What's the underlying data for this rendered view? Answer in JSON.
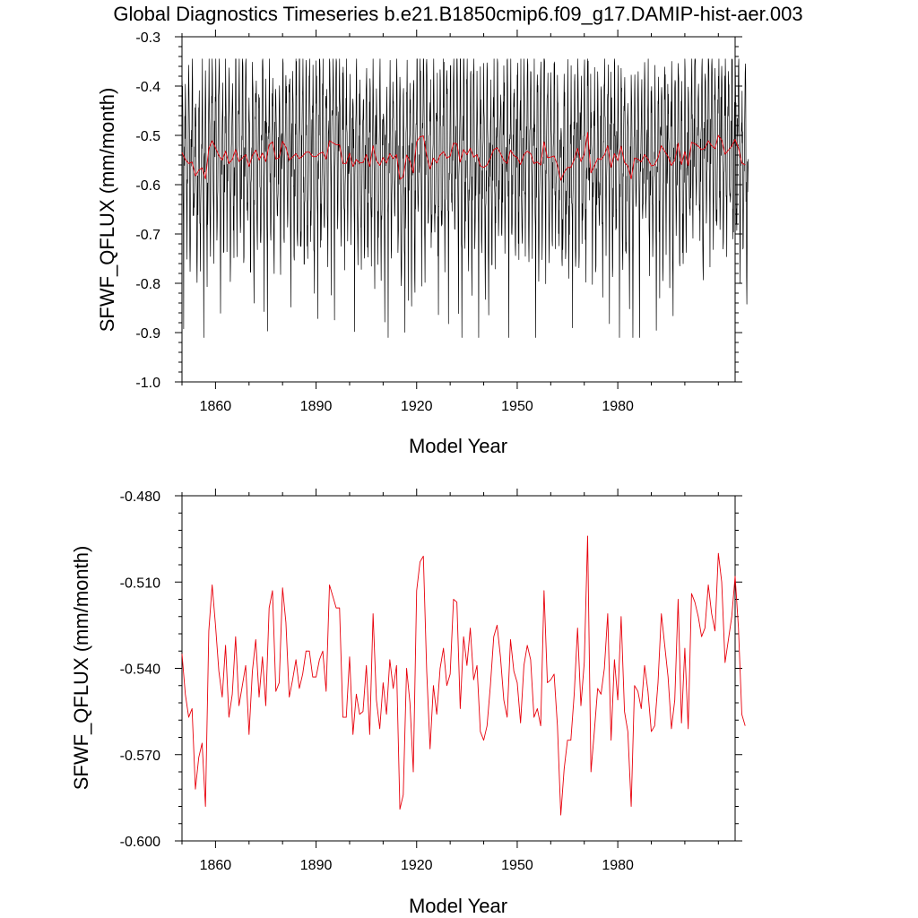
{
  "title": "Global Diagnostics Timeseries b.e21.B1850cmip6.f09_g17.DAMIP-hist-aer.003",
  "chart_data": [
    {
      "type": "line",
      "xlabel": "Model Year",
      "ylabel": "SFWF_QFLUX (mm/month)",
      "xlim": [
        1850,
        2015
      ],
      "ylim": [
        -1.0,
        -0.3
      ],
      "xticks": [
        1860,
        1890,
        1920,
        1950,
        1980
      ],
      "xtick_labels": [
        "1860",
        "1890",
        "1920",
        "1950",
        "1980"
      ],
      "yticks": [
        -1.0,
        -0.9,
        -0.8,
        -0.7,
        -0.6,
        -0.5,
        -0.4,
        -0.3
      ],
      "ytick_labels": [
        "-1.0",
        "-0.9",
        "-0.8",
        "-0.7",
        "-0.6",
        "-0.5",
        "-0.4",
        "-0.3"
      ],
      "grid": false,
      "series": [
        {
          "role": "monthly",
          "color": "#000000",
          "x_start": 1850,
          "x_step": 0.0833333,
          "values_per_year_approx": [
            -0.47,
            -0.45,
            -0.78,
            -0.8,
            -0.55,
            -0.52,
            -0.45,
            -0.61,
            -0.62,
            -0.42,
            -0.5
          ],
          "range_by_year": {
            "1850": [
              -0.79,
              -0.44
            ],
            "1851": [
              -0.91,
              -0.4
            ],
            "1853": [
              -0.85,
              -0.39
            ],
            "1858": [
              -0.87,
              -0.35
            ],
            "1870": [
              -0.86,
              -0.37
            ],
            "1890": [
              -0.76,
              -0.4
            ],
            "1913": [
              -0.89,
              -0.42
            ],
            "1950": [
              -0.83,
              -0.4
            ],
            "1980": [
              -0.85,
              -0.36
            ],
            "2014": [
              -0.82,
              -0.42
            ]
          }
        },
        {
          "role": "annual-mean",
          "color": "#e8000b",
          "x_start": 1850,
          "x_step": 1,
          "values": [
            -0.535,
            -0.549,
            -0.557,
            -0.554,
            -0.582,
            -0.571,
            -0.566,
            -0.588,
            -0.527,
            -0.511,
            -0.525,
            -0.541,
            -0.55,
            -0.532,
            -0.557,
            -0.549,
            -0.529,
            -0.553,
            -0.546,
            -0.539,
            -0.563,
            -0.541,
            -0.53,
            -0.55,
            -0.536,
            -0.553,
            -0.519,
            -0.513,
            -0.548,
            -0.545,
            -0.512,
            -0.524,
            -0.55,
            -0.544,
            -0.537,
            -0.547,
            -0.542,
            -0.534,
            -0.534,
            -0.543,
            -0.543,
            -0.537,
            -0.534,
            -0.548,
            -0.511,
            -0.515,
            -0.519,
            -0.519,
            -0.557,
            -0.557,
            -0.536,
            -0.563,
            -0.549,
            -0.556,
            -0.555,
            -0.539,
            -0.563,
            -0.521,
            -0.551,
            -0.561,
            -0.545,
            -0.556,
            -0.537,
            -0.547,
            -0.539,
            -0.589,
            -0.584,
            -0.54,
            -0.552,
            -0.576,
            -0.513,
            -0.503,
            -0.501,
            -0.541,
            -0.568,
            -0.546,
            -0.556,
            -0.54,
            -0.533,
            -0.546,
            -0.542,
            -0.516,
            -0.517,
            -0.554,
            -0.529,
            -0.539,
            -0.526,
            -0.544,
            -0.539,
            -0.562,
            -0.565,
            -0.56,
            -0.546,
            -0.529,
            -0.525,
            -0.536,
            -0.551,
            -0.557,
            -0.53,
            -0.541,
            -0.545,
            -0.559,
            -0.539,
            -0.532,
            -0.537,
            -0.557,
            -0.554,
            -0.56,
            -0.513,
            -0.545,
            -0.544,
            -0.542,
            -0.56,
            -0.591,
            -0.575,
            -0.565,
            -0.565,
            -0.549,
            -0.526,
            -0.553,
            -0.538,
            -0.494,
            -0.576,
            -0.562,
            -0.547,
            -0.549,
            -0.54,
            -0.521,
            -0.565,
            -0.537,
            -0.551,
            -0.522,
            -0.555,
            -0.562,
            -0.588,
            -0.546,
            -0.548,
            -0.554,
            -0.539,
            -0.548,
            -0.562,
            -0.56,
            -0.545,
            -0.521,
            -0.532,
            -0.543,
            -0.561,
            -0.551,
            -0.516,
            -0.559,
            -0.533,
            -0.561,
            -0.514,
            -0.517,
            -0.522,
            -0.529,
            -0.526,
            -0.511,
            -0.521,
            -0.527,
            -0.5,
            -0.51,
            -0.538,
            -0.53,
            -0.522,
            -0.508,
            -0.526,
            -0.556,
            -0.56
          ]
        }
      ]
    },
    {
      "type": "line",
      "xlabel": "Model Year",
      "ylabel": "SFWF_QFLUX (mm/month)",
      "xlim": [
        1850,
        2015
      ],
      "ylim": [
        -0.6,
        -0.48
      ],
      "xticks": [
        1860,
        1890,
        1920,
        1950,
        1980
      ],
      "xtick_labels": [
        "1860",
        "1890",
        "1920",
        "1950",
        "1980"
      ],
      "yticks": [
        -0.6,
        -0.57,
        -0.54,
        -0.51,
        -0.48
      ],
      "ytick_labels": [
        "-0.600",
        "-0.570",
        "-0.540",
        "-0.510",
        "-0.480"
      ],
      "grid": false,
      "series": [
        {
          "role": "annual-mean",
          "color": "#e8000b",
          "x_start": 1850,
          "x_step": 1,
          "values": [
            -0.535,
            -0.549,
            -0.557,
            -0.554,
            -0.582,
            -0.571,
            -0.566,
            -0.588,
            -0.527,
            -0.511,
            -0.525,
            -0.541,
            -0.55,
            -0.532,
            -0.557,
            -0.549,
            -0.529,
            -0.553,
            -0.546,
            -0.539,
            -0.563,
            -0.541,
            -0.53,
            -0.55,
            -0.536,
            -0.553,
            -0.519,
            -0.513,
            -0.548,
            -0.545,
            -0.512,
            -0.524,
            -0.55,
            -0.544,
            -0.537,
            -0.547,
            -0.542,
            -0.534,
            -0.534,
            -0.543,
            -0.543,
            -0.537,
            -0.534,
            -0.548,
            -0.511,
            -0.515,
            -0.519,
            -0.519,
            -0.557,
            -0.557,
            -0.536,
            -0.563,
            -0.549,
            -0.556,
            -0.555,
            -0.539,
            -0.563,
            -0.521,
            -0.551,
            -0.561,
            -0.545,
            -0.556,
            -0.537,
            -0.547,
            -0.539,
            -0.589,
            -0.584,
            -0.54,
            -0.552,
            -0.576,
            -0.513,
            -0.503,
            -0.501,
            -0.541,
            -0.568,
            -0.546,
            -0.556,
            -0.54,
            -0.533,
            -0.546,
            -0.542,
            -0.516,
            -0.517,
            -0.554,
            -0.529,
            -0.539,
            -0.526,
            -0.544,
            -0.539,
            -0.562,
            -0.565,
            -0.56,
            -0.546,
            -0.529,
            -0.525,
            -0.536,
            -0.551,
            -0.557,
            -0.53,
            -0.541,
            -0.545,
            -0.559,
            -0.539,
            -0.532,
            -0.537,
            -0.557,
            -0.554,
            -0.56,
            -0.513,
            -0.545,
            -0.544,
            -0.542,
            -0.56,
            -0.591,
            -0.575,
            -0.565,
            -0.565,
            -0.549,
            -0.526,
            -0.553,
            -0.538,
            -0.494,
            -0.576,
            -0.562,
            -0.547,
            -0.549,
            -0.54,
            -0.521,
            -0.565,
            -0.537,
            -0.551,
            -0.522,
            -0.555,
            -0.562,
            -0.588,
            -0.546,
            -0.548,
            -0.554,
            -0.539,
            -0.548,
            -0.562,
            -0.56,
            -0.545,
            -0.521,
            -0.532,
            -0.543,
            -0.561,
            -0.551,
            -0.516,
            -0.559,
            -0.533,
            -0.561,
            -0.514,
            -0.517,
            -0.522,
            -0.529,
            -0.526,
            -0.511,
            -0.521,
            -0.527,
            -0.5,
            -0.51,
            -0.538,
            -0.53,
            -0.522,
            -0.508,
            -0.526,
            -0.556,
            -0.56
          ]
        }
      ]
    }
  ]
}
